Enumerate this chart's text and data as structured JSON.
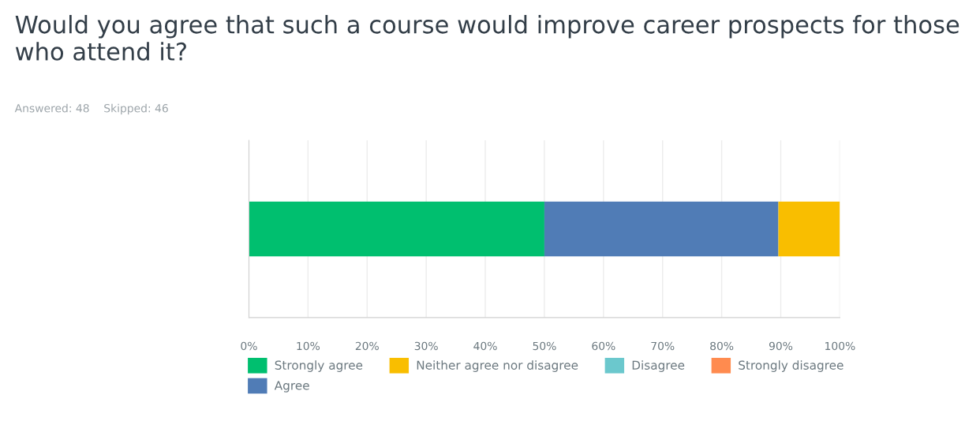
{
  "chart_data": {
    "type": "bar",
    "orientation": "horizontal",
    "stacked": true,
    "title": "Would you agree that such a course would improve career prospects for those who attend it?",
    "subtitle": "Answered: 48    Skipped: 46",
    "categories": [
      null
    ],
    "series": [
      {
        "name": "Strongly agree",
        "color": "#00bf6f",
        "values": [
          50
        ]
      },
      {
        "name": "Agree",
        "color": "#507cb6",
        "values": [
          39.6
        ]
      },
      {
        "name": "Neither agree nor disagree",
        "color": "#f9be00",
        "values": [
          10.4
        ]
      },
      {
        "name": "Disagree",
        "color": "#6bc8cd",
        "values": [
          0
        ]
      },
      {
        "name": "Strongly disagree",
        "color": "#ff8b4f",
        "values": [
          0
        ]
      }
    ],
    "xlim": [
      0,
      100
    ],
    "xticks": [
      {
        "value": 0,
        "label": "0%"
      },
      {
        "value": 10,
        "label": "10%"
      },
      {
        "value": 20,
        "label": "20%"
      },
      {
        "value": 30,
        "label": "30%"
      },
      {
        "value": 40,
        "label": "40%"
      },
      {
        "value": 50,
        "label": "50%"
      },
      {
        "value": 60,
        "label": "60%"
      },
      {
        "value": 70,
        "label": "70%"
      },
      {
        "value": 80,
        "label": "80%"
      },
      {
        "value": 90,
        "label": "90%"
      },
      {
        "value": 100,
        "label": "100%"
      }
    ],
    "grid": "x",
    "legend": "bottom"
  }
}
